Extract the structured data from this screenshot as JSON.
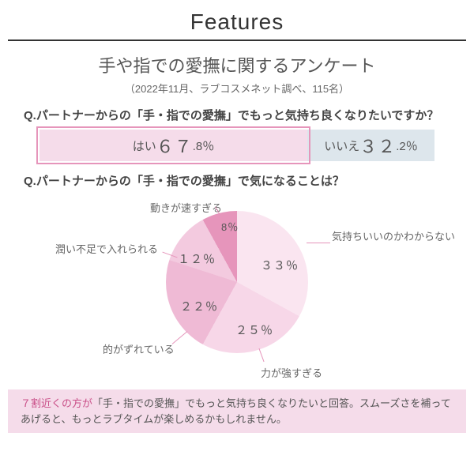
{
  "header": {
    "title": "Features"
  },
  "survey": {
    "title": "手や指での愛撫に関するアンケート",
    "meta": "（2022年11月、ラブコスメネット調べ、115名）"
  },
  "q1": {
    "text": "Q.パートナーからの「手・指での愛撫」でもっと気持ち良くなりたいですか？",
    "yes_label": "はい",
    "yes_big": "６７",
    "yes_small": ".8％",
    "yes_pct": 67.8,
    "no_label": "いいえ",
    "no_big": "３２",
    "no_small": ".2％",
    "no_pct": 32.2,
    "yes_color": "#f5dcea",
    "no_color": "#dde6ec",
    "highlight_border": "#e695bb"
  },
  "q2": {
    "text": "Q.パートナーからの「手・指での愛撫」で気になることは？",
    "type": "pie",
    "slices": [
      {
        "label": "気持ちいいのかわからない",
        "value": 33,
        "display": "３３％",
        "color": "#fae5f0"
      },
      {
        "label": "力が強すぎる",
        "value": 25,
        "display": "２５％",
        "color": "#f7d7e8"
      },
      {
        "label": "的がずれている",
        "value": 22,
        "display": "２２％",
        "color": "#efbad5"
      },
      {
        "label": "潤い不足で入れられる",
        "value": 12,
        "display": "１２％",
        "color": "#f3cadf"
      },
      {
        "label": "動きが速すぎる",
        "value": 8,
        "display": "8％",
        "color": "#e695bb"
      }
    ],
    "background_color": "#ffffff"
  },
  "footer": {
    "emphasis": "７割近くの方が",
    "rest": "「手・指での愛撫」でもっと気持ち良くなりたいと回答。スムーズさを補ってあげると、もっとラブタイムが楽しめるかもしれません。"
  }
}
